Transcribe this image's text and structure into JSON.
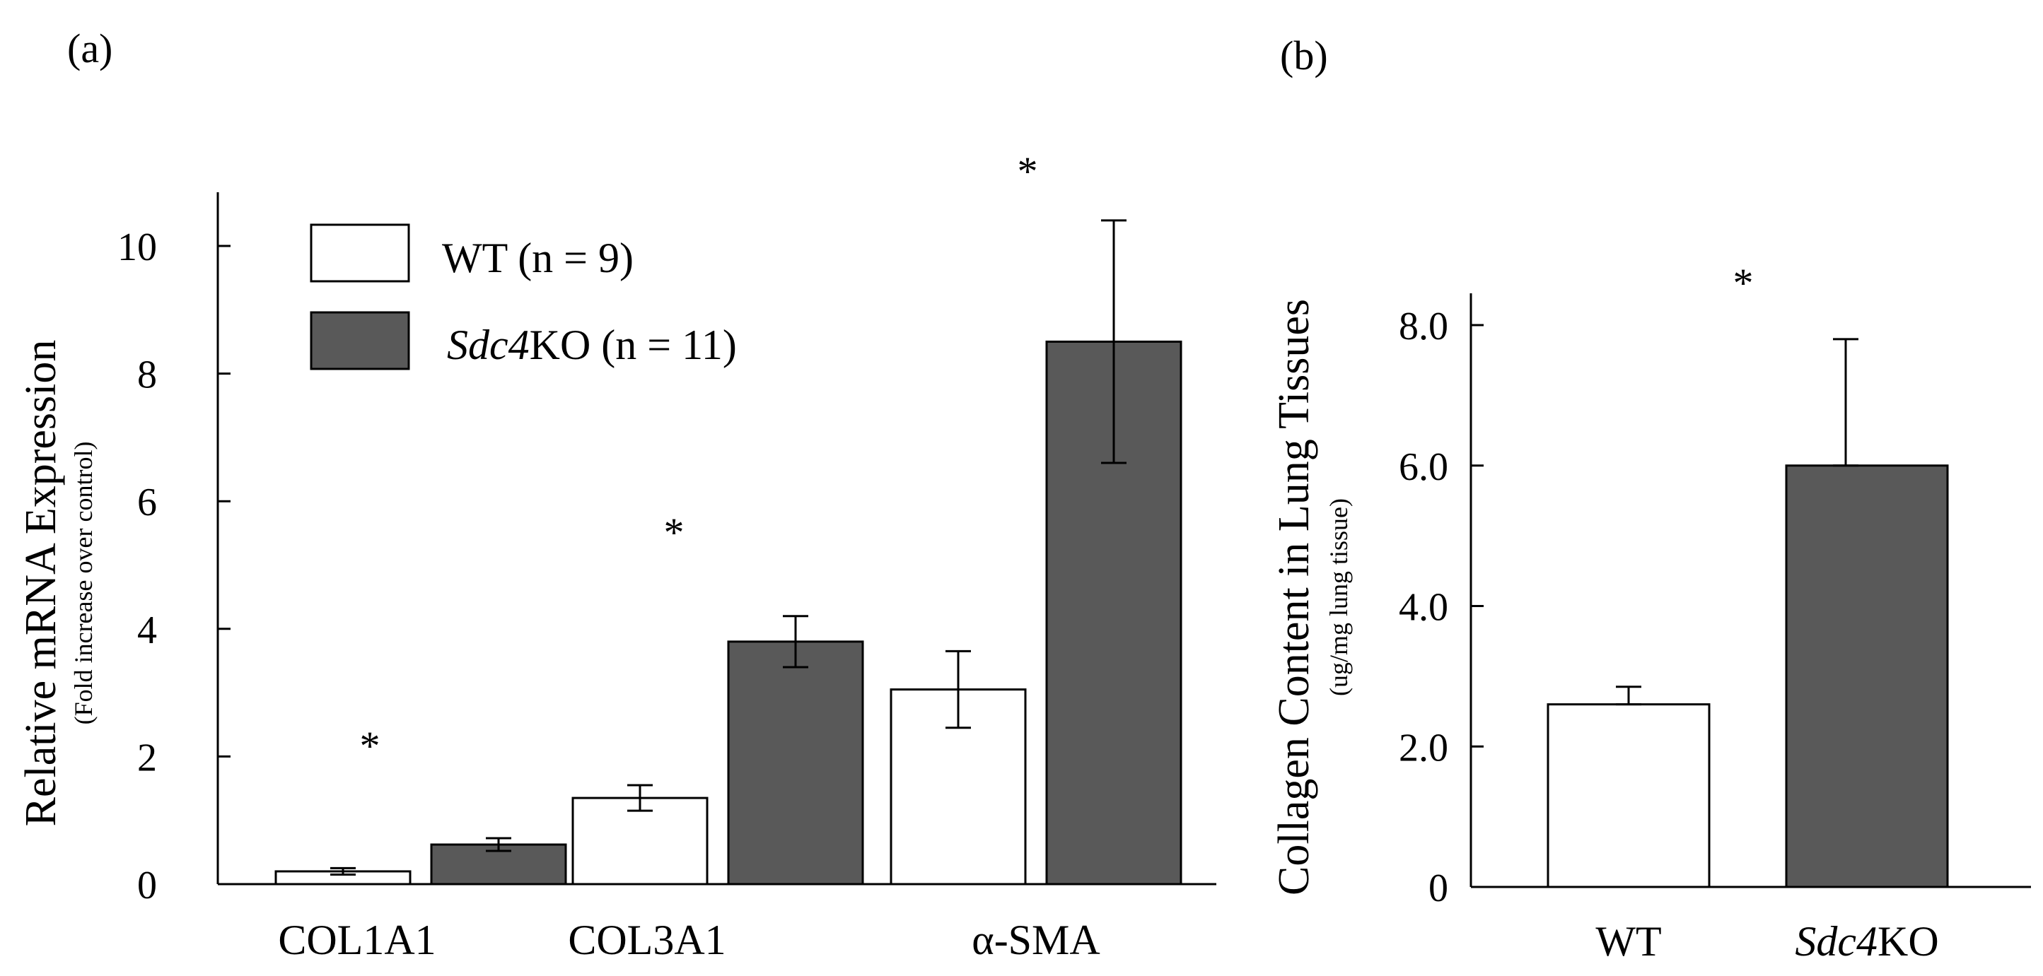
{
  "chart_data": [
    {
      "type": "bar",
      "panel_label": "(a)",
      "title": "",
      "ylabel": "Relative mRNA Expression",
      "ylabel_sub": "(Fold increase over control)",
      "xlabel": "",
      "ylim": [
        0,
        11
      ],
      "yticks": [
        "0",
        "2",
        "4",
        "6",
        "8",
        "10"
      ],
      "categories": [
        "COL1A1",
        "COL3A1",
        "α-SMA"
      ],
      "series": [
        {
          "name": "WT (n = 9)",
          "name_italic": "",
          "name_rest": "WT (n = 9)",
          "color": "#ffffff",
          "values": [
            0.2,
            1.35,
            3.05
          ],
          "errors": [
            0.05,
            0.2,
            0.6
          ]
        },
        {
          "name": "Sdc4KO (n = 11)",
          "name_italic": "Sdc4",
          "name_rest": "KO (n = 11)",
          "color": "#595959",
          "values": [
            0.62,
            3.8,
            8.5
          ],
          "errors": [
            0.1,
            0.4,
            1.9
          ]
        }
      ],
      "significance": [
        "*",
        "*",
        "*"
      ],
      "legend": "top-left",
      "grid": false
    },
    {
      "type": "bar",
      "panel_label": "(b)",
      "title": "",
      "ylabel": "Collagen Content in Lung Tissues",
      "ylabel_sub": "(ug/mg lung tissue)",
      "xlabel": "",
      "ylim": [
        0,
        8.4
      ],
      "yticks": [
        "0",
        "2.0",
        "4.0",
        "6.0",
        "8.0"
      ],
      "categories": [
        {
          "italic": "",
          "rest": "WT"
        },
        {
          "italic": "Sdc4",
          "rest": "KO"
        }
      ],
      "values": [
        2.6,
        6.0
      ],
      "errors": [
        0.25,
        1.8
      ],
      "colors": [
        "#ffffff",
        "#595959"
      ],
      "significance": [
        "",
        "*"
      ],
      "grid": false
    }
  ]
}
